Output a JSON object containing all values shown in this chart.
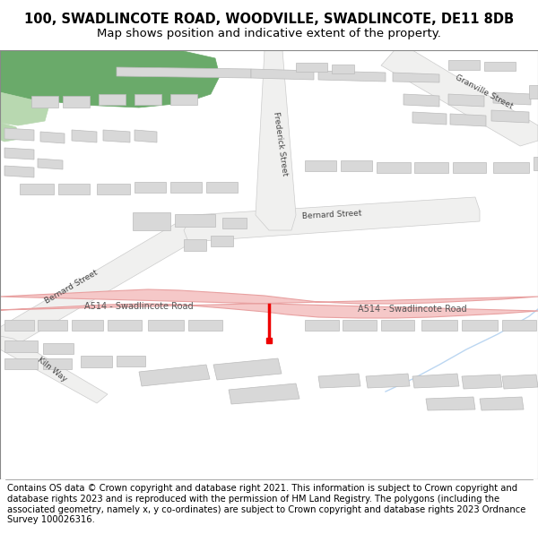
{
  "title_line1": "100, SWADLINCOTE ROAD, WOODVILLE, SWADLINCOTE, DE11 8DB",
  "title_line2": "Map shows position and indicative extent of the property.",
  "footer_text": "Contains OS data © Crown copyright and database right 2021. This information is subject to Crown copyright and database rights 2023 and is reproduced with the permission of HM Land Registry. The polygons (including the associated geometry, namely x, y co-ordinates) are subject to Crown copyright and database rights 2023 Ordnance Survey 100026316.",
  "map_bg": "#f7f7f7",
  "road_color": "#f5c8c8",
  "road_border_color": "#e8a0a0",
  "building_color": "#d8d8d8",
  "building_edge_color": "#bbbbbb",
  "green_dark": "#6aaa6a",
  "green_light": "#b8d8b0",
  "stream_color": "#aaccee",
  "marker_color": "#ee0000",
  "title_fontsize": 10.5,
  "subtitle_fontsize": 9.5,
  "footer_fontsize": 7.2,
  "label_fontsize": 6.5,
  "road_label_fontsize": 7.0
}
